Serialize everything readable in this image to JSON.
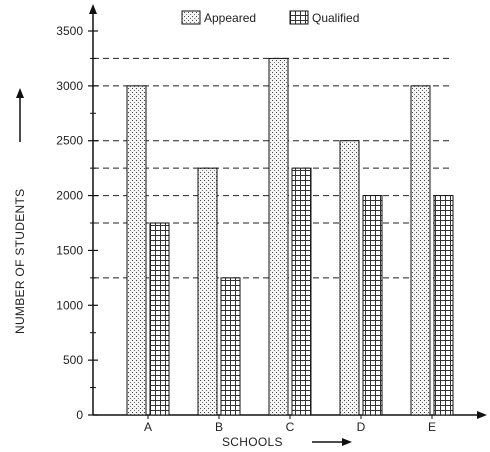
{
  "chart_data": {
    "type": "bar",
    "categories": [
      "A",
      "B",
      "C",
      "D",
      "E"
    ],
    "series": [
      {
        "name": "Appeared",
        "values": [
          3000,
          2250,
          3250,
          2500,
          3000
        ]
      },
      {
        "name": "Qualified",
        "values": [
          1750,
          1250,
          2250,
          2000,
          2000
        ]
      }
    ],
    "xlabel": "SCHOOLS",
    "ylabel": "NUMBER OF STUDENTS",
    "ylim": [
      0,
      3500
    ],
    "yticks": [
      "0",
      "500",
      "1000",
      "1500",
      "2000",
      "2500",
      "3000",
      "3500"
    ],
    "legend_position": "top-center",
    "grid": false,
    "reference_lines": [
      3250,
      3000,
      2500,
      2250,
      2000,
      1750,
      1250
    ]
  }
}
